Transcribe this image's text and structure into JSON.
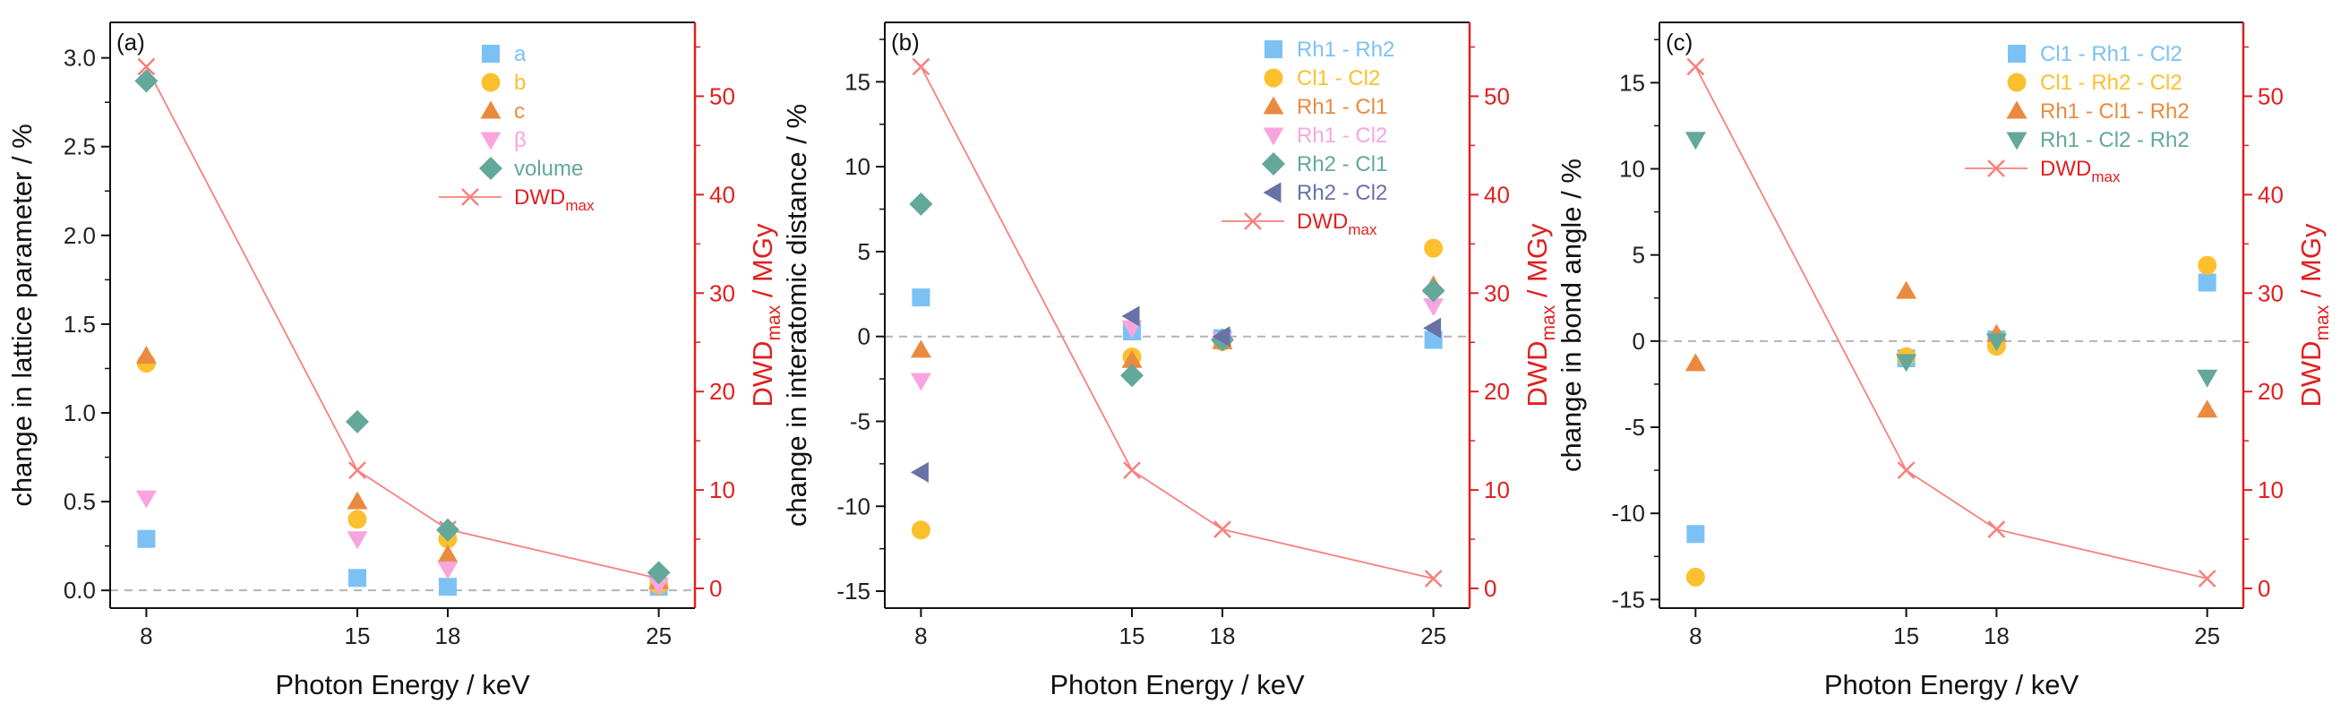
{
  "colors": {
    "blue": "#7cc1f4",
    "yellow": "#fcc02f",
    "orange": "#ea8a3f",
    "pink": "#f8a5df",
    "teal": "#63a899",
    "slate": "#6872a6",
    "dwd": "#f7807d",
    "dwd_axis": "#e02020",
    "dashed": "#b4b4b4"
  },
  "chart_data": [
    {
      "type": "scatter",
      "panel_label": "(a)",
      "xlabel": "Photon Energy / keV",
      "ylabel": "change in lattice parameter / %",
      "y2label": {
        "main": "DWD",
        "sub": "max",
        "rest": " / MGy"
      },
      "x_ticks": [
        "8",
        "15",
        "18",
        "25"
      ],
      "xlim": [
        6.8,
        26.2
      ],
      "ylim": [
        -0.1,
        3.2
      ],
      "y_ticks": [
        "0.0",
        "0.5",
        "1.0",
        "1.5",
        "2.0",
        "2.5",
        "3.0"
      ],
      "y2lim": [
        -2,
        57.5
      ],
      "y2_ticks": [
        "0",
        "10",
        "20",
        "30",
        "40",
        "50"
      ],
      "legend_position": "top-right",
      "series": [
        {
          "name": "a",
          "marker": "square",
          "color": "#7cc1f4",
          "x": [
            8,
            15,
            18,
            25
          ],
          "values": [
            0.29,
            0.07,
            0.02,
            0.02
          ]
        },
        {
          "name": "b",
          "marker": "circle",
          "color": "#fcc02f",
          "x": [
            8,
            15,
            18,
            25
          ],
          "values": [
            1.28,
            0.4,
            0.29,
            0.03
          ]
        },
        {
          "name": "c",
          "marker": "triangle-up",
          "color": "#ea8a3f",
          "x": [
            8,
            15,
            18,
            25
          ],
          "values": [
            1.32,
            0.5,
            0.2,
            0.05
          ]
        },
        {
          "name": "β",
          "marker": "triangle-down",
          "color": "#f8a5df",
          "x": [
            8,
            15,
            18,
            25
          ],
          "values": [
            0.52,
            0.29,
            0.12,
            0.03
          ]
        },
        {
          "name": "volume",
          "marker": "diamond",
          "color": "#63a899",
          "x": [
            8,
            15,
            18,
            25
          ],
          "values": [
            2.87,
            0.95,
            0.34,
            0.1
          ]
        }
      ],
      "dwd": {
        "name_main": "DWD",
        "name_sub": "max",
        "x": [
          8,
          15,
          18,
          25
        ],
        "values": [
          53,
          12,
          6,
          1
        ]
      }
    },
    {
      "type": "scatter",
      "panel_label": "(b)",
      "xlabel": "Photon Energy / keV",
      "ylabel": "change in interatomic distance / %",
      "y2label": {
        "main": "DWD",
        "sub": "max",
        "rest": " / MGy"
      },
      "x_ticks": [
        "8",
        "15",
        "18",
        "25"
      ],
      "xlim": [
        6.8,
        26.2
      ],
      "ylim": [
        -16,
        18.5
      ],
      "y_ticks": [
        "-15",
        "-10",
        "-5",
        "0",
        "5",
        "10",
        "15"
      ],
      "y2lim": [
        -2,
        57.5
      ],
      "y2_ticks": [
        "0",
        "10",
        "20",
        "30",
        "40",
        "50"
      ],
      "legend_position": "top-right",
      "series": [
        {
          "name": "Rh1 - Rh2",
          "marker": "square",
          "color": "#7cc1f4",
          "x": [
            8,
            15,
            18,
            25
          ],
          "values": [
            2.3,
            0.3,
            -0.1,
            -0.2
          ]
        },
        {
          "name": "Cl1 - Cl2",
          "marker": "circle",
          "color": "#fcc02f",
          "x": [
            8,
            15,
            18,
            25
          ],
          "values": [
            -11.4,
            -1.2,
            -0.3,
            5.2
          ]
        },
        {
          "name": "Rh1 - Cl1",
          "marker": "triangle-up",
          "color": "#ea8a3f",
          "x": [
            8,
            15,
            18,
            25
          ],
          "values": [
            -0.8,
            -1.4,
            -0.3,
            3.0
          ]
        },
        {
          "name": "Rh1 - Cl2",
          "marker": "triangle-down",
          "color": "#f8a5df",
          "x": [
            8,
            15,
            18,
            25
          ],
          "values": [
            -2.6,
            0.5,
            -0.2,
            1.8
          ]
        },
        {
          "name": "Rh2 - Cl1",
          "marker": "diamond",
          "color": "#63a899",
          "x": [
            8,
            15,
            18,
            25
          ],
          "values": [
            7.8,
            -2.3,
            -0.2,
            2.7
          ]
        },
        {
          "name": "Rh2 - Cl2",
          "marker": "triangle-left",
          "color": "#6872a6",
          "x": [
            8,
            15,
            18,
            25
          ],
          "values": [
            -8.0,
            1.2,
            0.0,
            0.5
          ]
        }
      ],
      "dwd": {
        "name_main": "DWD",
        "name_sub": "max",
        "x": [
          8,
          15,
          18,
          25
        ],
        "values": [
          53,
          12,
          6,
          1
        ]
      }
    },
    {
      "type": "scatter",
      "panel_label": "(c)",
      "xlabel": "Photon Energy / keV",
      "ylabel": "change in bond angle / %",
      "y2label": {
        "main": "DWD",
        "sub": "max",
        "rest": " / MGy"
      },
      "x_ticks": [
        "8",
        "15",
        "18",
        "25"
      ],
      "xlim": [
        6.8,
        26.2
      ],
      "ylim": [
        -15.5,
        18.5
      ],
      "y_ticks": [
        "-15",
        "-10",
        "-5",
        "0",
        "5",
        "10",
        "15"
      ],
      "y2lim": [
        -2,
        57.5
      ],
      "y2_ticks": [
        "0",
        "10",
        "20",
        "30",
        "40",
        "50"
      ],
      "legend_position": "top-right",
      "series": [
        {
          "name": "Cl1 - Rh1 - Cl2",
          "marker": "square",
          "color": "#7cc1f4",
          "x": [
            8,
            15,
            18,
            25
          ],
          "values": [
            -11.2,
            -1.0,
            0.1,
            3.4
          ]
        },
        {
          "name": "Cl1 - Rh2 - Cl2",
          "marker": "circle",
          "color": "#fcc02f",
          "x": [
            8,
            15,
            18,
            25
          ],
          "values": [
            -13.7,
            -0.9,
            -0.3,
            4.4
          ]
        },
        {
          "name": "Rh1 - Cl1 - Rh2",
          "marker": "triangle-up",
          "color": "#ea8a3f",
          "x": [
            8,
            15,
            18,
            25
          ],
          "values": [
            -1.3,
            2.9,
            0.4,
            -4.0
          ]
        },
        {
          "name": "Rh1 - Cl2 - Rh2",
          "marker": "triangle-down",
          "color": "#63a899",
          "x": [
            8,
            15,
            18,
            25
          ],
          "values": [
            11.7,
            -1.2,
            0.0,
            -2.1
          ]
        }
      ],
      "dwd": {
        "name_main": "DWD",
        "name_sub": "max",
        "x": [
          8,
          15,
          18,
          25
        ],
        "values": [
          53,
          12,
          6,
          1
        ]
      }
    }
  ]
}
